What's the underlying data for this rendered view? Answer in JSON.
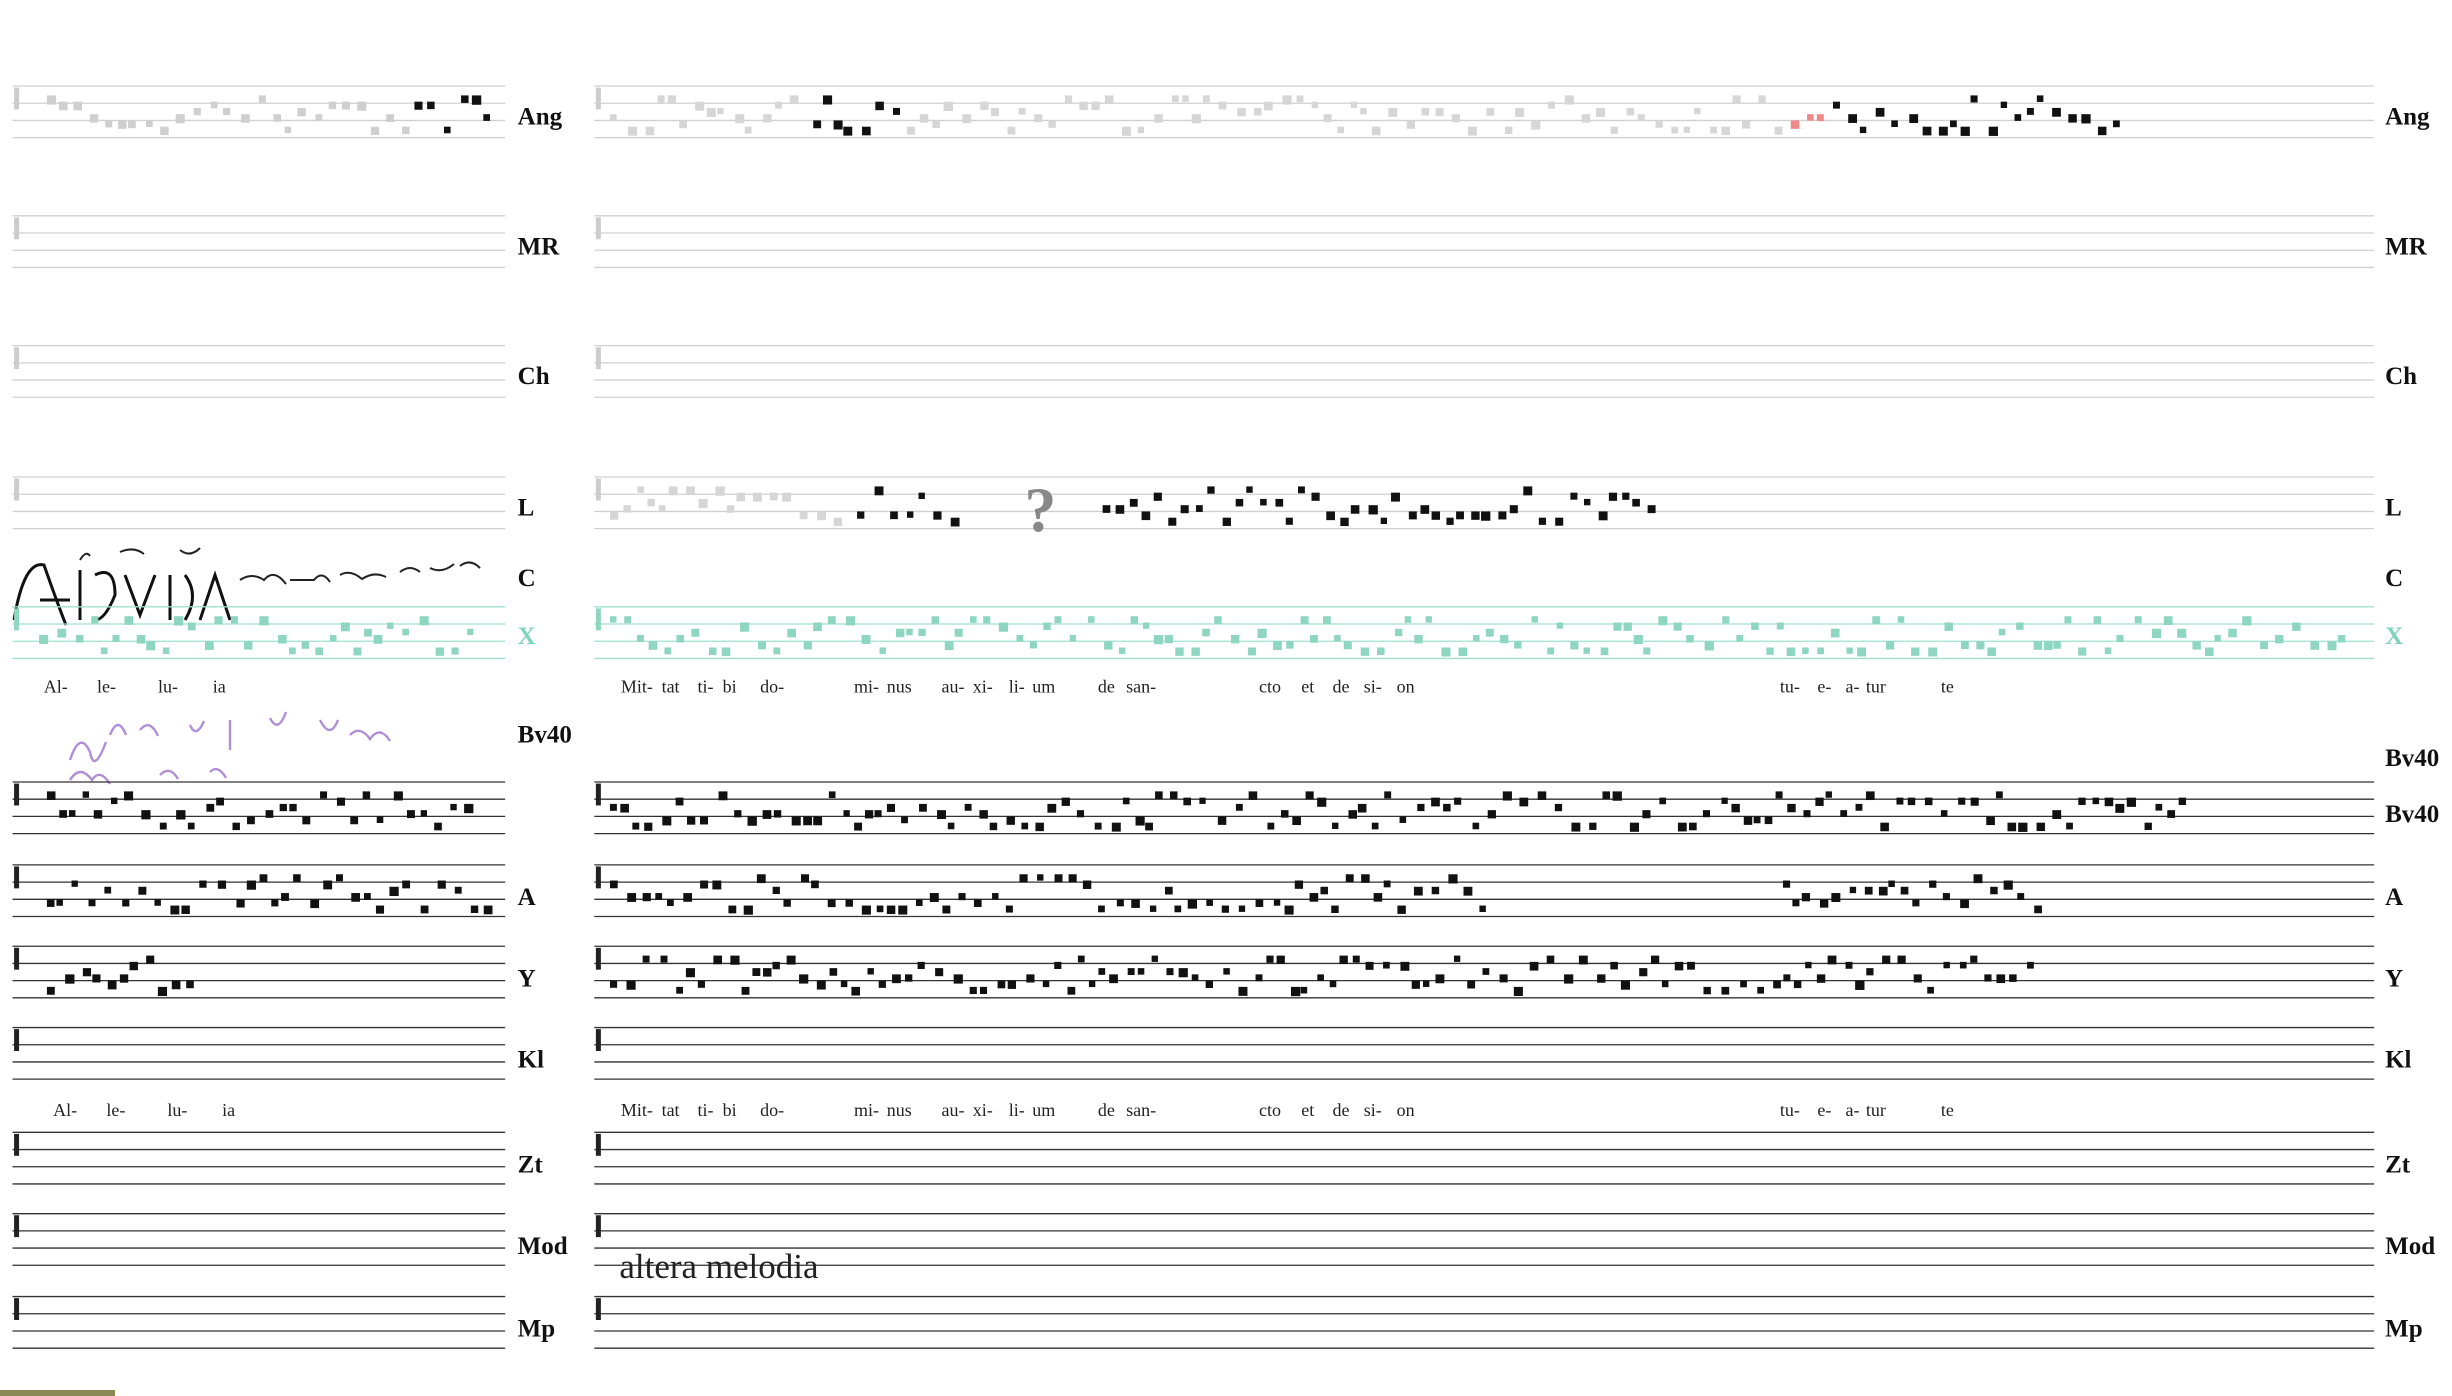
{
  "staves": [
    {
      "left_label": "Ang",
      "right_labels": [
        "Ang"
      ]
    },
    {
      "left_label": "MR",
      "right_labels": [
        "MR"
      ]
    },
    {
      "left_label": "Ch",
      "right_labels": [
        "Ch"
      ]
    },
    {
      "left_label": "L",
      "right_labels": [
        "L"
      ]
    },
    {
      "left_label": "C",
      "right_labels": [
        "C"
      ]
    },
    {
      "left_label": "X",
      "right_labels": [
        "X"
      ]
    },
    {
      "left_label": "Bv40",
      "right_labels": [
        "Bv40",
        "Bv40"
      ]
    },
    {
      "left_label": "A",
      "right_labels": [
        "A"
      ]
    },
    {
      "left_label": "Y",
      "right_labels": [
        "Y"
      ]
    },
    {
      "left_label": "Kl",
      "right_labels": [
        "Kl"
      ]
    },
    {
      "left_label": "Zt",
      "right_labels": [
        "Zt"
      ]
    },
    {
      "left_label": "Mod",
      "right_labels": [
        "Mod"
      ]
    },
    {
      "left_label": "Mp",
      "right_labels": [
        "Mp"
      ]
    }
  ],
  "lyrics": [
    {
      "left": [
        "Al-",
        "le-",
        "lu-",
        "ia"
      ],
      "right": [
        "Mit-",
        "tat",
        "ti-",
        "bi",
        "do-",
        "mi-",
        "nus",
        "au-",
        "xi-",
        "li-",
        "um",
        "de",
        "san-",
        "cto",
        "et",
        "de",
        "si-",
        "on",
        "tu-",
        "e-",
        "a-",
        "tur",
        "te"
      ]
    },
    {
      "left": [
        "Al-",
        "le-",
        "lu-",
        "ia"
      ],
      "right": [
        "Mit-",
        "tat",
        "ti-",
        "bi",
        "do-",
        "mi-",
        "nus",
        "au-",
        "xi-",
        "li-",
        "um",
        "de",
        "san-",
        "cto",
        "et",
        "de",
        "si-",
        "on",
        "tu-",
        "e-",
        "a-",
        "tur",
        "te"
      ]
    }
  ],
  "question": "?",
  "altera_melodia": "altera melodia"
}
